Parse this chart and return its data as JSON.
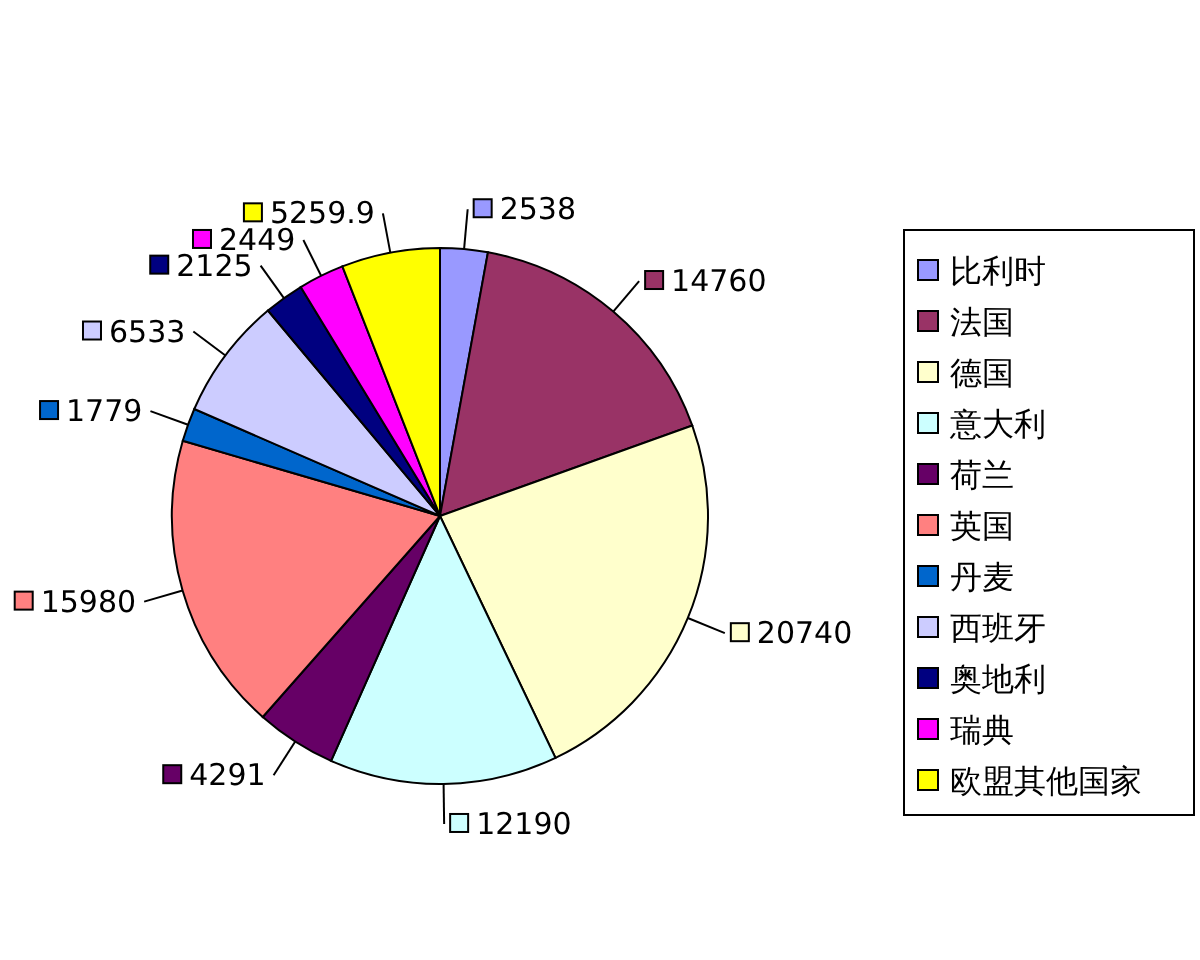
{
  "chart_data": {
    "type": "pie",
    "categories": [
      "比利时",
      "法国",
      "德国",
      "意大利",
      "荷兰",
      "英国",
      "丹麦",
      "西班牙",
      "奥地利",
      "瑞典",
      "欧盟其他国家"
    ],
    "values": [
      2538,
      14760,
      20740,
      12190,
      4291,
      15980,
      1779,
      6533,
      2125,
      2449,
      5259.9
    ],
    "colors": [
      "#9999ff",
      "#993366",
      "#ffffcc",
      "#ccffff",
      "#660066",
      "#ff8080",
      "#0066cc",
      "#ccccff",
      "#000080",
      "#ff00ff",
      "#ffff00"
    ],
    "data_labels": true,
    "legend": "right"
  }
}
